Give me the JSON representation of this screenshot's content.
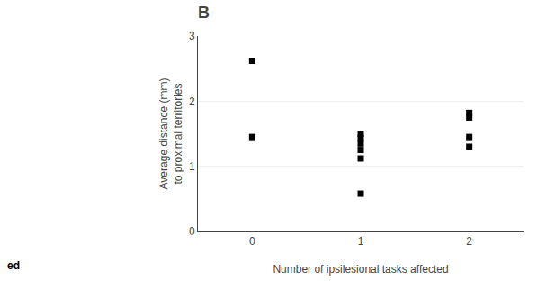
{
  "chart_data": {
    "type": "scatter",
    "title": "B",
    "x_label": "Number of ipsilesional tasks affected",
    "y_label": "Average distance (mm)\nto proximal territories",
    "annotations": [
      "ed"
    ],
    "x": [
      0,
      0,
      1,
      1,
      1,
      1,
      1,
      1,
      2,
      2,
      2,
      2
    ],
    "values": [
      2.62,
      1.45,
      1.5,
      1.43,
      1.35,
      1.25,
      1.12,
      0.58,
      1.82,
      1.75,
      1.45,
      1.3
    ],
    "xlim": [
      -0.5,
      2.5
    ],
    "xticks": [
      0,
      1,
      2
    ],
    "ylim": [
      0,
      3
    ],
    "yticks": [
      0,
      1,
      2,
      3
    ],
    "grid": true,
    "marker": "square",
    "color": "#000000"
  }
}
